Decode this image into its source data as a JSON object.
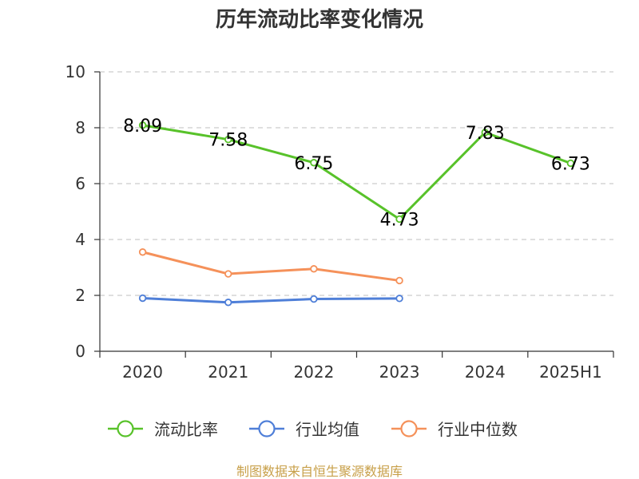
{
  "title": "历年流动比率变化情况",
  "source": "制图数据来自恒生聚源数据库",
  "colors": {
    "source": "#c8a04a"
  },
  "chart_data": {
    "type": "line",
    "categories": [
      "2020",
      "2021",
      "2022",
      "2023",
      "2024",
      "2025H1"
    ],
    "ylim": [
      0,
      10
    ],
    "yticks": [
      0,
      2,
      4,
      6,
      8,
      10
    ],
    "grid": true,
    "legend_position": "bottom",
    "series": [
      {
        "name": "流动比率",
        "color": "#58c22a",
        "values": [
          8.09,
          7.58,
          6.75,
          4.73,
          7.83,
          6.73
        ],
        "labels": [
          "8.09",
          "7.58",
          "6.75",
          "4.73",
          "7.83",
          "6.73"
        ]
      },
      {
        "name": "行业均值",
        "color": "#4f7fd8",
        "values": [
          1.9,
          1.75,
          1.87,
          1.89,
          null,
          null
        ]
      },
      {
        "name": "行业中位数",
        "color": "#f5915a",
        "values": [
          3.55,
          2.77,
          2.95,
          2.53,
          null,
          null
        ]
      }
    ]
  }
}
